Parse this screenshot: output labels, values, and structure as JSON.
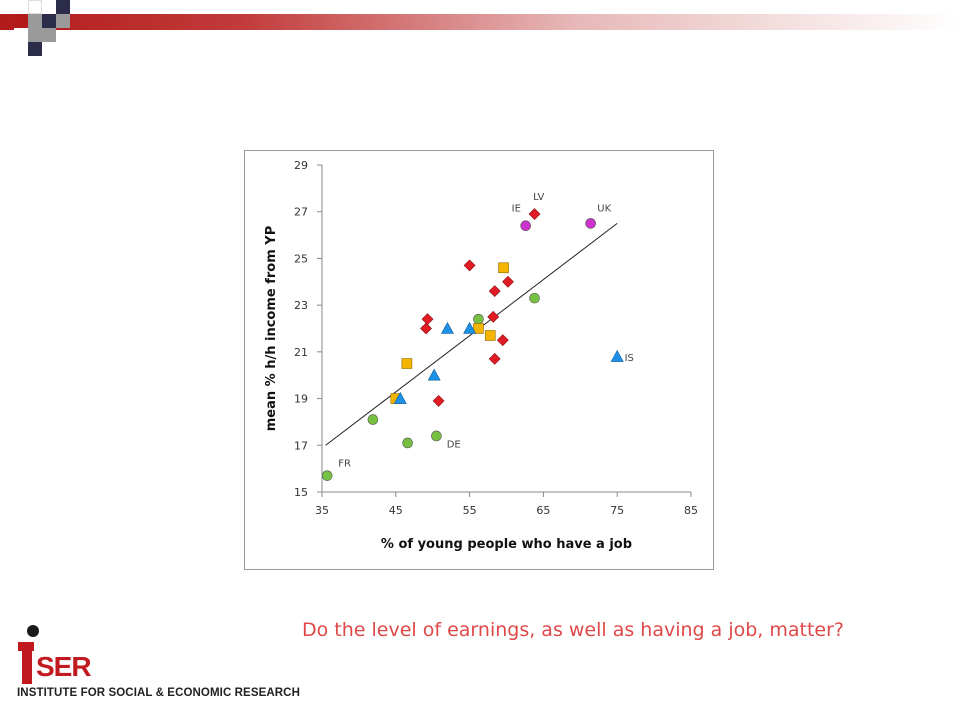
{
  "slide": {
    "subtitle": "Do the level of earnings, as well as having a job, matter?",
    "logo": {
      "word": "SER",
      "tagline": "INSTITUTE FOR SOCIAL & ECONOMIC RESEARCH",
      "brand_color": "#c0191f"
    },
    "accent": "#b31b1b"
  },
  "chart_data": {
    "type": "scatter",
    "title": "",
    "xlabel": "% of young people who have a job",
    "ylabel": "mean % h/h income from YP",
    "xlim": [
      35,
      85
    ],
    "ylim": [
      15,
      29
    ],
    "x_ticks": [
      "35",
      "45",
      "55",
      "65",
      "75",
      "85"
    ],
    "y_ticks": [
      "15",
      "17",
      "19",
      "21",
      "23",
      "25",
      "27",
      "29"
    ],
    "grid": false,
    "legend": "none",
    "trendline": {
      "from": [
        35.5,
        17.0
      ],
      "to": [
        75.0,
        26.5
      ]
    },
    "series": [
      {
        "marker": "diamond",
        "color": "#e01b24",
        "points": [
          [
            63.8,
            26.9
          ],
          [
            55.0,
            24.7
          ],
          [
            60.2,
            24.0
          ],
          [
            58.4,
            23.6
          ],
          [
            49.3,
            22.4
          ],
          [
            49.1,
            22.0
          ],
          [
            58.2,
            22.5
          ],
          [
            59.5,
            21.5
          ],
          [
            58.4,
            20.7
          ],
          [
            50.8,
            18.9
          ]
        ]
      },
      {
        "marker": "circle",
        "color": "#cc33cc",
        "points": [
          [
            62.6,
            26.4
          ],
          [
            71.4,
            26.5
          ]
        ]
      },
      {
        "marker": "circle",
        "color": "#77c142",
        "points": [
          [
            63.8,
            23.3
          ],
          [
            56.2,
            22.4
          ],
          [
            41.9,
            18.1
          ],
          [
            46.6,
            17.1
          ],
          [
            50.5,
            17.4
          ],
          [
            35.7,
            15.7
          ]
        ]
      },
      {
        "marker": "square",
        "color": "#f5b400",
        "points": [
          [
            59.6,
            24.6
          ],
          [
            56.2,
            22.0
          ],
          [
            57.8,
            21.7
          ],
          [
            46.5,
            20.5
          ],
          [
            45.0,
            19.0
          ]
        ]
      },
      {
        "marker": "triangle",
        "color": "#1e90e6",
        "points": [
          [
            52.0,
            22.0
          ],
          [
            55.0,
            22.0
          ],
          [
            50.2,
            20.0
          ],
          [
            45.6,
            19.0
          ],
          [
            75.0,
            20.8
          ]
        ]
      }
    ],
    "annotations": [
      {
        "text": "LV",
        "x": 63.6,
        "y": 27.5
      },
      {
        "text": "IE",
        "x": 60.7,
        "y": 27.0
      },
      {
        "text": "UK",
        "x": 72.3,
        "y": 27.0
      },
      {
        "text": "IS",
        "x": 76.0,
        "y": 20.6
      },
      {
        "text": "DE",
        "x": 51.9,
        "y": 16.9
      },
      {
        "text": "FR",
        "x": 37.2,
        "y": 16.1
      }
    ]
  }
}
